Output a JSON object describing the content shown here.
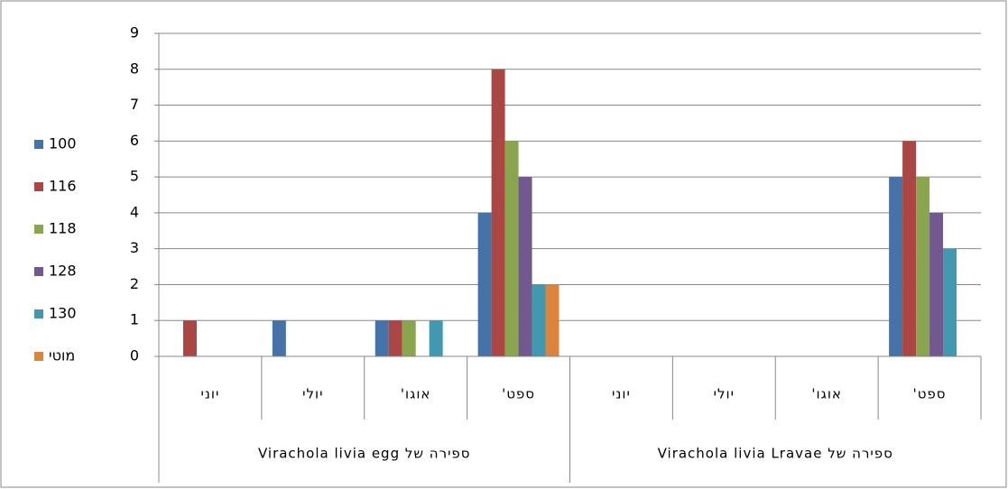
{
  "chart_data": {
    "type": "bar",
    "categories": [
      "יוני",
      "יולי",
      "אוגו'",
      "ספט'",
      "יוני",
      "יולי",
      "אוגו'",
      "ספט'"
    ],
    "groups": [
      {
        "label": "ספירה של Virachola livia egg",
        "span": 4
      },
      {
        "label": "ספירה של Virachola livia Lravae",
        "span": 4
      }
    ],
    "series": [
      {
        "name": "100",
        "color": "#4572a7",
        "values": [
          null,
          1,
          1,
          4,
          null,
          null,
          null,
          5
        ]
      },
      {
        "name": "116",
        "color": "#aa4643",
        "values": [
          1,
          null,
          1,
          8,
          null,
          null,
          null,
          6
        ]
      },
      {
        "name": "118",
        "color": "#89a54e",
        "values": [
          null,
          null,
          1,
          6,
          null,
          null,
          null,
          5
        ]
      },
      {
        "name": "128",
        "color": "#71588f",
        "values": [
          null,
          null,
          null,
          5,
          null,
          null,
          null,
          4
        ]
      },
      {
        "name": "130",
        "color": "#4198af",
        "values": [
          null,
          null,
          1,
          2,
          null,
          null,
          null,
          3
        ]
      },
      {
        "name": "מוטי",
        "color": "#db843d",
        "values": [
          null,
          null,
          null,
          2,
          null,
          null,
          null,
          null
        ]
      }
    ],
    "ylim": [
      0,
      9
    ],
    "yticks": [
      0,
      1,
      2,
      3,
      4,
      5,
      6,
      7,
      8,
      9
    ],
    "grid": true,
    "legend": "left"
  }
}
